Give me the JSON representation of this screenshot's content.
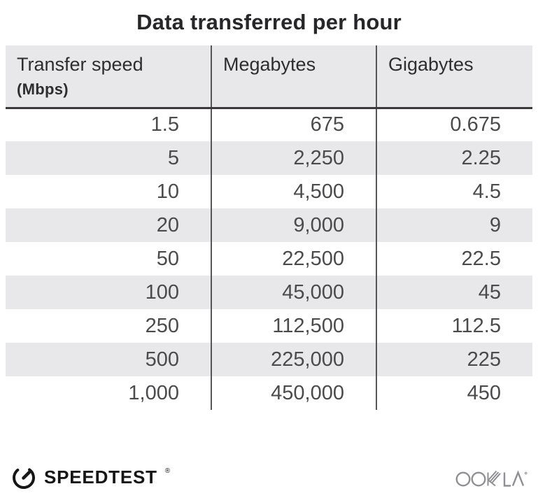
{
  "title": "Data transferred per hour",
  "table": {
    "headers": [
      {
        "label": "Transfer speed",
        "sublabel": "(Mbps)"
      },
      {
        "label": "Megabytes"
      },
      {
        "label": "Gigabytes"
      }
    ],
    "rows": [
      [
        "1.5",
        "675",
        "0.675"
      ],
      [
        "5",
        "2,250",
        "2.25"
      ],
      [
        "10",
        "4,500",
        "4.5"
      ],
      [
        "20",
        "9,000",
        "9"
      ],
      [
        "50",
        "22,500",
        "22.5"
      ],
      [
        "100",
        "45,000",
        "45"
      ],
      [
        "250",
        "112,500",
        "112.5"
      ],
      [
        "500",
        "225,000",
        "225"
      ],
      [
        "1,000",
        "450,000",
        "450"
      ]
    ]
  },
  "footer": {
    "speedtest": "SPEEDTEST",
    "speedtest_reg": "®",
    "ookla": "OOKLA"
  },
  "colors": {
    "header_bg": "#e8e7ea",
    "alt_row_bg": "#e8e7ea",
    "column_divider": "#57555a",
    "header_bottom_border": "#3b393c",
    "title_text": "#272628",
    "cell_text": "#4b4b4d",
    "speedtest_black": "#161616",
    "ookla_gray": "#909094"
  },
  "chart_data": {
    "type": "table",
    "title": "Data transferred per hour",
    "columns": [
      "Transfer speed (Mbps)",
      "Megabytes",
      "Gigabytes"
    ],
    "rows_numeric": [
      [
        1.5,
        675,
        0.675
      ],
      [
        5,
        2250,
        2.25
      ],
      [
        10,
        4500,
        4.5
      ],
      [
        20,
        9000,
        9
      ],
      [
        50,
        22500,
        22.5
      ],
      [
        100,
        45000,
        45
      ],
      [
        250,
        112500,
        112.5
      ],
      [
        500,
        225000,
        225
      ],
      [
        1000,
        450000,
        450
      ]
    ],
    "layout": {
      "alternating_row_shading": true,
      "grid": "vertical-dividers-only",
      "legend": "none"
    }
  }
}
